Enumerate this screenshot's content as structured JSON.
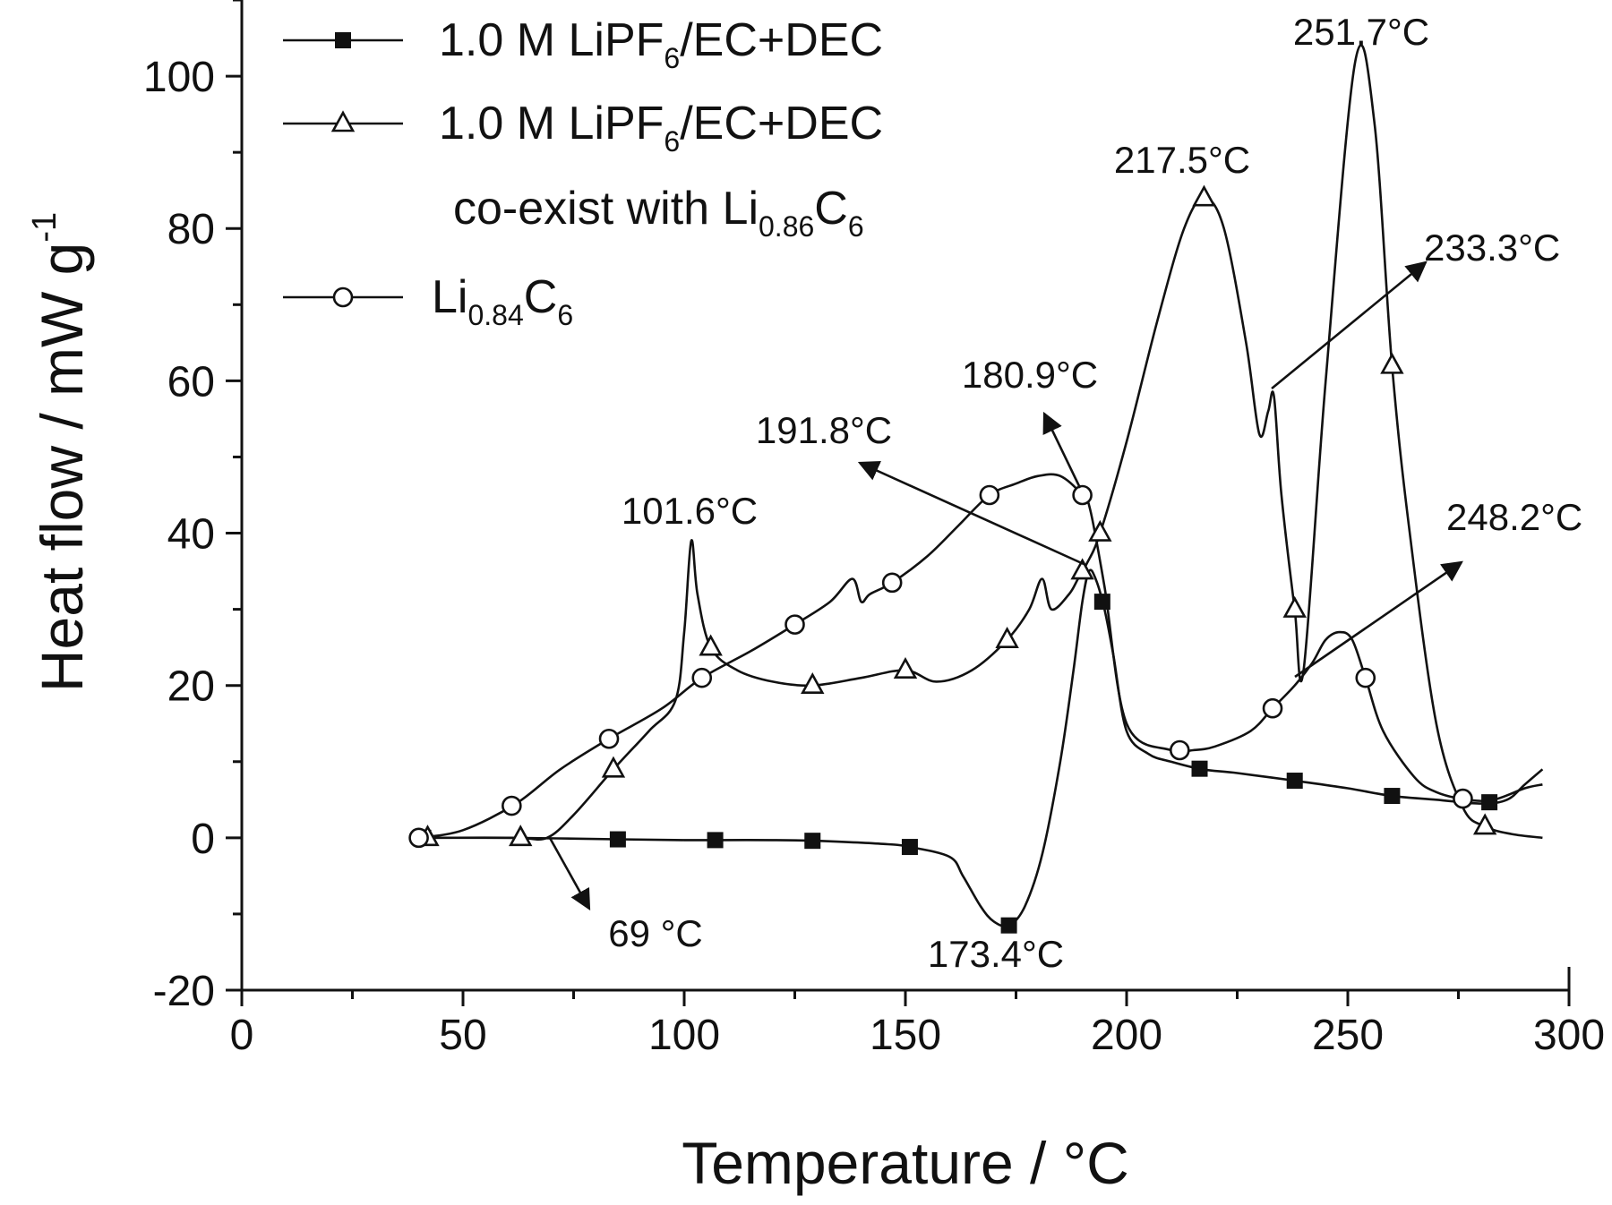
{
  "chart_data": {
    "type": "line",
    "xlabel": "Temperature / °C",
    "ylabel": "Heat flow / mW g",
    "ylabel_sup": "-1",
    "xlim": [
      0,
      300
    ],
    "ylim": [
      -20,
      110
    ],
    "x_ticks": [
      0,
      50,
      100,
      150,
      200,
      250,
      300
    ],
    "y_ticks": [
      -20,
      0,
      20,
      40,
      60,
      80,
      100
    ],
    "legend_position": "top-left",
    "legend": [
      {
        "marker": "filled-square",
        "parts": [
          "1.0 M LiPF",
          "6",
          "/EC+DEC"
        ]
      },
      {
        "marker": "open-triangle",
        "parts": [
          "1.0 M LiPF",
          "6",
          "/EC+DEC"
        ],
        "line2_parts": [
          "co-exist with Li",
          "0.86",
          "C",
          "6"
        ]
      },
      {
        "marker": "open-circle",
        "parts": [
          "Li",
          "0.84",
          "C",
          "6"
        ]
      }
    ],
    "series": [
      {
        "marker": "filled-square",
        "x": [
          40,
          60,
          85,
          100,
          107,
          120,
          130,
          145,
          151,
          160,
          163,
          167,
          170,
          173.4,
          177,
          181,
          185,
          188,
          190,
          191.5,
          193,
          195,
          197,
          200,
          205,
          210,
          217,
          225,
          238,
          250,
          260,
          270,
          280,
          286,
          290,
          294
        ],
        "y": [
          0,
          0,
          -0.2,
          -0.3,
          -0.3,
          -0.3,
          -0.4,
          -0.8,
          -1.2,
          -2.5,
          -5,
          -9,
          -11,
          -11.5,
          -9,
          -2,
          10,
          22,
          31,
          35,
          34,
          30,
          24,
          14,
          11,
          10,
          9,
          8.5,
          7.5,
          6.5,
          5.5,
          5,
          4.5,
          5,
          7,
          9
        ]
      },
      {
        "marker": "open-triangle",
        "x": [
          40,
          55,
          63,
          69,
          75,
          84,
          92,
          98,
          100,
          101.6,
          103,
          106,
          112,
          120,
          129,
          140,
          150,
          157,
          165,
          173,
          178,
          180.9,
          183,
          187,
          189,
          191,
          194,
          200,
          207,
          213,
          217.5,
          222,
          227,
          230,
          232,
          233.3,
          235,
          238,
          240,
          245,
          251.7,
          256,
          260,
          264,
          270,
          276,
          281,
          287,
          294
        ],
        "y": [
          0,
          0,
          0,
          0,
          3,
          9,
          14,
          18,
          27,
          39,
          32,
          25,
          22,
          20.5,
          20,
          21,
          22,
          20.5,
          22,
          26,
          30,
          34,
          30,
          32,
          34,
          36,
          40,
          52,
          68,
          80,
          84,
          80,
          65,
          53,
          56,
          58,
          45,
          30,
          22,
          60,
          102,
          94,
          62,
          40,
          15,
          4,
          1.5,
          0.5,
          0
        ]
      },
      {
        "marker": "open-circle",
        "x": [
          40,
          50,
          62,
          72,
          83,
          95,
          104,
          115,
          125,
          133,
          138,
          140,
          142,
          147,
          155,
          162,
          169,
          175,
          180,
          185,
          190,
          191.8,
          195,
          200,
          210,
          215,
          220,
          228,
          233,
          238,
          242,
          245,
          248.2,
          251,
          254,
          258,
          265,
          270,
          277,
          283,
          290,
          294
        ],
        "y": [
          0,
          1,
          4.5,
          9,
          13,
          17,
          21,
          24.5,
          28,
          31,
          34,
          31,
          32,
          33.5,
          37,
          41,
          45,
          46.5,
          47.5,
          47.5,
          45,
          43,
          33,
          15,
          11.5,
          11.5,
          12,
          14,
          17,
          20,
          23,
          26,
          27,
          26,
          21,
          14,
          8,
          6,
          5,
          5,
          6.5,
          7
        ]
      }
    ],
    "markers": [
      {
        "series": 0,
        "x": [
          41,
          85,
          107,
          129,
          151,
          173.4,
          194.5,
          216.5,
          238,
          260,
          282
        ]
      },
      {
        "series": 1,
        "x": [
          42,
          63,
          84,
          106,
          129,
          150,
          173,
          190,
          194,
          217.5,
          238,
          260,
          281
        ]
      },
      {
        "series": 2,
        "x": [
          40,
          61,
          83,
          104,
          125,
          147,
          169,
          190,
          212,
          233,
          254,
          276
        ]
      }
    ],
    "annotations": [
      {
        "text": "251.7°C"
      },
      {
        "text": "217.5°C"
      },
      {
        "text": "233.3°C"
      },
      {
        "text": "180.9°C"
      },
      {
        "text": "191.8°C"
      },
      {
        "text": "101.6°C"
      },
      {
        "text": "248.2°C"
      },
      {
        "text": "69 °C"
      },
      {
        "text": "173.4°C"
      }
    ]
  }
}
